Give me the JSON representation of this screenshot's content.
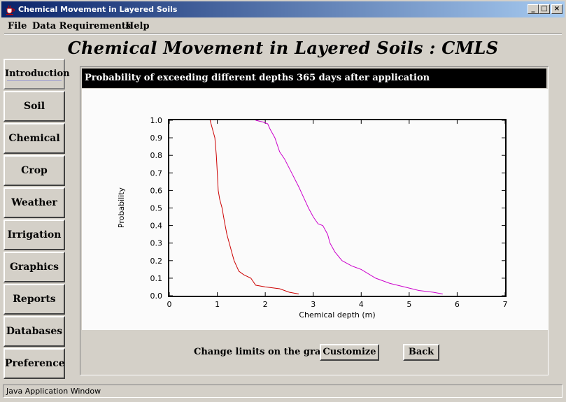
{
  "window": {
    "title": "Chemical Movement in Layered Soils",
    "controls": {
      "minimize": "_",
      "maximize": "□",
      "close": "×"
    }
  },
  "menu": {
    "file": "File",
    "data_requirements": "Data Requirements",
    "help": "Help"
  },
  "app_heading": "Chemical Movement in Layered Soils : CMLS",
  "sidebar": {
    "items": [
      {
        "label": "Introduction",
        "active": true
      },
      {
        "label": "Soil"
      },
      {
        "label": "Chemical"
      },
      {
        "label": "Crop"
      },
      {
        "label": "Weather"
      },
      {
        "label": "Irrigation"
      },
      {
        "label": "Graphics"
      },
      {
        "label": "Reports"
      },
      {
        "label": "Databases"
      },
      {
        "label": "Preference"
      }
    ]
  },
  "panel": {
    "header": "Probability of exceeding different depths 365 days after application",
    "change_limits_label": "Change limits on the graph:",
    "customize_button": "Customize",
    "back_button": "Back"
  },
  "chart_data": {
    "type": "line",
    "xlabel": "Chemical depth (m)",
    "ylabel": "Probability",
    "xlim": [
      0,
      7
    ],
    "ylim": [
      0,
      1.0
    ],
    "xticks": [
      "0",
      "1",
      "2",
      "3",
      "4",
      "5",
      "6",
      "7"
    ],
    "yticks": [
      "0.0",
      "0.1",
      "0.2",
      "0.3",
      "0.4",
      "0.5",
      "0.6",
      "0.7",
      "0.8",
      "0.9",
      "1.0"
    ],
    "grid": false,
    "series": [
      {
        "color": "#cc0000",
        "x": [
          0.85,
          0.9,
          0.95,
          0.98,
          1.0,
          1.02,
          1.05,
          1.1,
          1.15,
          1.2,
          1.25,
          1.3,
          1.35,
          1.45,
          1.55,
          1.7,
          1.8,
          2.0,
          2.3,
          2.5,
          2.7
        ],
        "y": [
          1.0,
          0.95,
          0.9,
          0.8,
          0.7,
          0.6,
          0.55,
          0.5,
          0.42,
          0.35,
          0.3,
          0.25,
          0.2,
          0.14,
          0.12,
          0.1,
          0.06,
          0.05,
          0.04,
          0.02,
          0.01
        ]
      },
      {
        "color": "#cc00cc",
        "x": [
          1.8,
          1.95,
          2.05,
          2.1,
          2.2,
          2.3,
          2.4,
          2.55,
          2.7,
          2.8,
          2.9,
          3.0,
          3.1,
          3.2,
          3.3,
          3.35,
          3.45,
          3.6,
          3.8,
          4.0,
          4.3,
          4.6,
          4.9,
          5.2,
          5.5,
          5.7
        ],
        "y": [
          1.0,
          0.99,
          0.98,
          0.95,
          0.9,
          0.82,
          0.78,
          0.7,
          0.62,
          0.56,
          0.5,
          0.45,
          0.41,
          0.4,
          0.35,
          0.3,
          0.25,
          0.2,
          0.17,
          0.15,
          0.1,
          0.07,
          0.05,
          0.03,
          0.02,
          0.01
        ]
      }
    ]
  },
  "status": {
    "text": "Java Application Window"
  }
}
